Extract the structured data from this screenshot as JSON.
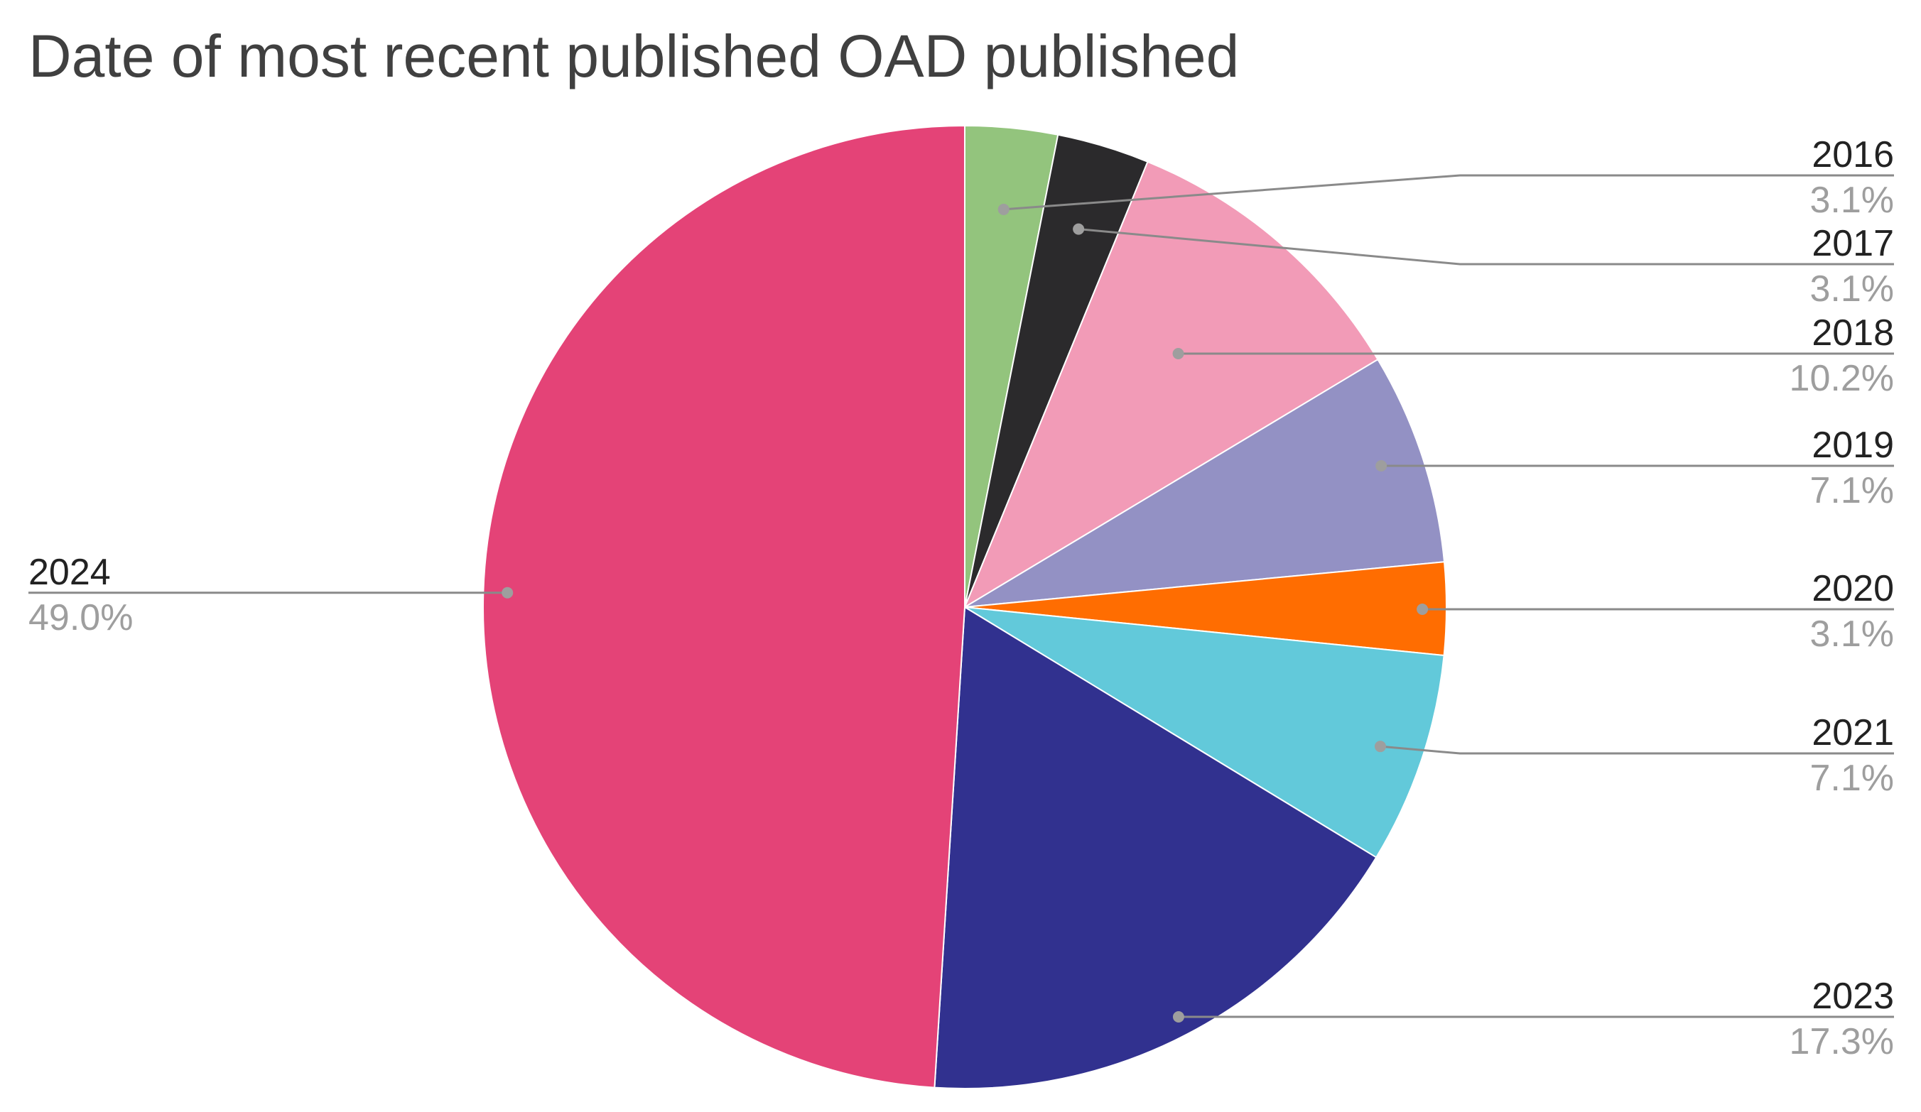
{
  "chart_data": {
    "type": "pie",
    "title": "Date of most recent published OAD published",
    "start_angle": "12 o'clock",
    "direction": "clockwise",
    "slices": [
      {
        "label": "2016",
        "value": 3.1,
        "pct_label": "3.1%",
        "color": "#93c47d"
      },
      {
        "label": "2017",
        "value": 3.1,
        "pct_label": "3.1%",
        "color": "#2b2a2c"
      },
      {
        "label": "2018",
        "value": 10.2,
        "pct_label": "10.2%",
        "color": "#f29bb7"
      },
      {
        "label": "2019",
        "value": 7.1,
        "pct_label": "7.1%",
        "color": "#9391c4"
      },
      {
        "label": "2020",
        "value": 3.1,
        "pct_label": "3.1%",
        "color": "#ff6d01"
      },
      {
        "label": "2021",
        "value": 7.1,
        "pct_label": "7.1%",
        "color": "#62c9da"
      },
      {
        "label": "2023",
        "value": 17.3,
        "pct_label": "17.3%",
        "color": "#31318f"
      },
      {
        "label": "2024",
        "value": 49.0,
        "pct_label": "49.0%",
        "color": "#e44377"
      }
    ],
    "legend": "none"
  }
}
